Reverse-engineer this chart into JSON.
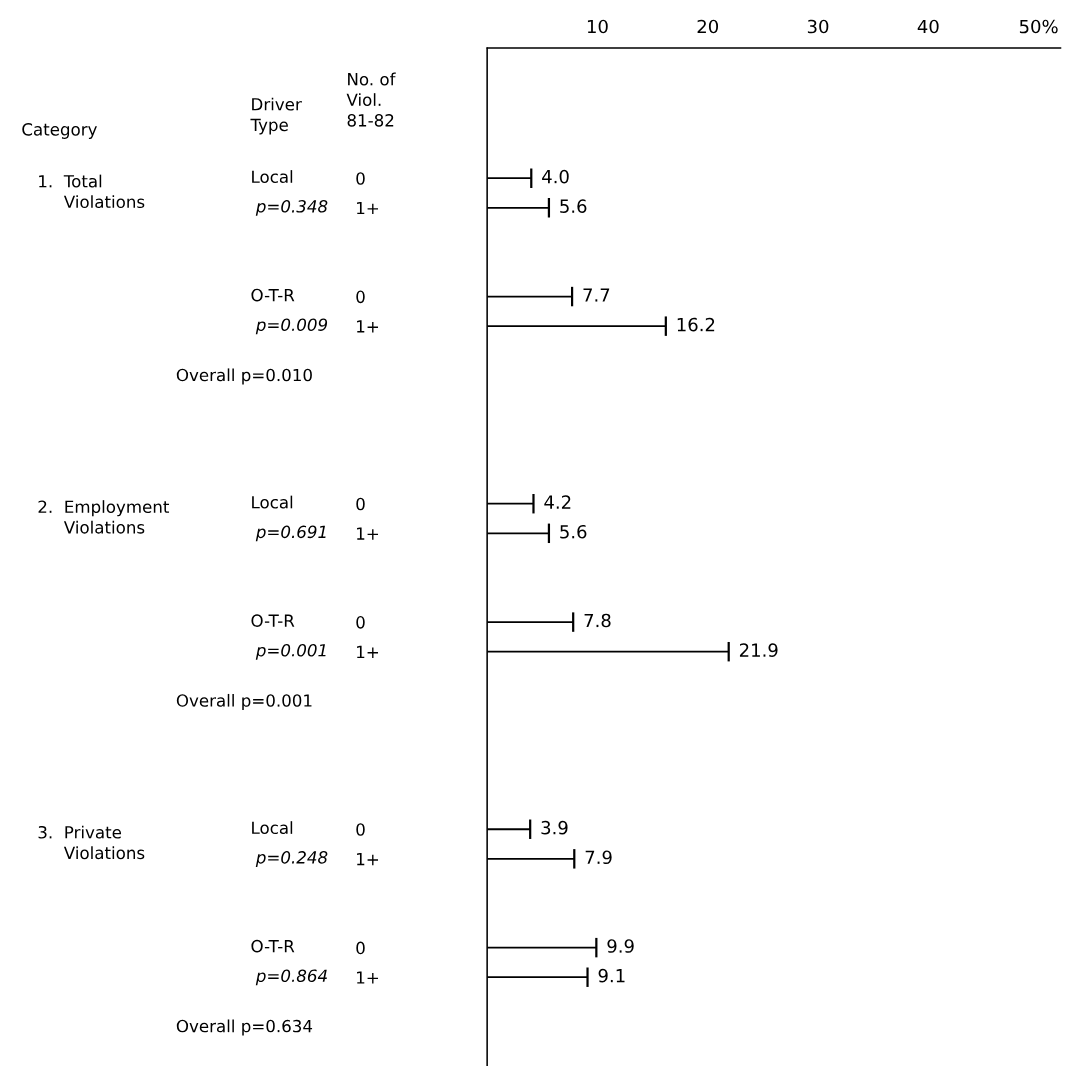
{
  "chart_data": {
    "type": "bar",
    "orientation": "horizontal",
    "categories": [
      "0",
      "1+",
      null,
      null,
      "0",
      "1+",
      null,
      null,
      null,
      null,
      null,
      "0",
      "1+",
      null,
      null,
      "0",
      "1+",
      null,
      null,
      null,
      null,
      null,
      "0",
      "1+",
      null,
      null,
      "0",
      "1+",
      null,
      null
    ],
    "values": [
      4.0,
      5.6,
      null,
      null,
      7.7,
      16.2,
      null,
      null,
      null,
      null,
      null,
      4.2,
      5.6,
      null,
      null,
      7.8,
      21.9,
      null,
      null,
      null,
      null,
      null,
      3.9,
      7.9,
      null,
      null,
      9.9,
      9.1,
      null,
      null
    ],
    "value_labels": [
      "4.0",
      "5.6",
      null,
      null,
      "7.7",
      "16.2",
      null,
      null,
      null,
      null,
      null,
      "4.2",
      "5.6",
      null,
      null,
      "7.8",
      "21.9",
      null,
      null,
      null,
      null,
      null,
      "3.9",
      "7.9",
      null,
      null,
      "9.9",
      "9.1",
      null,
      null
    ],
    "color": "#000000",
    "x2lim": [
      0,
      52
    ],
    "x2ticks": [
      10,
      20,
      30,
      40,
      {
        "value": 50,
        "label": "50%"
      }
    ],
    "grid": false,
    "annotations": [
      "Category",
      "Driver\nType",
      "No. of\nViol.\n81-82",
      "1.  Total\n     Violations",
      "Local",
      "p=0.348",
      "O-T-R",
      "p=0.009",
      "Overall p=0.010",
      "2.  Employment\n     Violations",
      "Local",
      "p=0.691",
      "O-T-R",
      "p=0.001",
      "Overall p=0.001",
      "3.  Private\n     Violations",
      "Local",
      "p=0.248",
      "O-T-R",
      "p=0.864",
      "Overall p=0.634"
    ]
  }
}
